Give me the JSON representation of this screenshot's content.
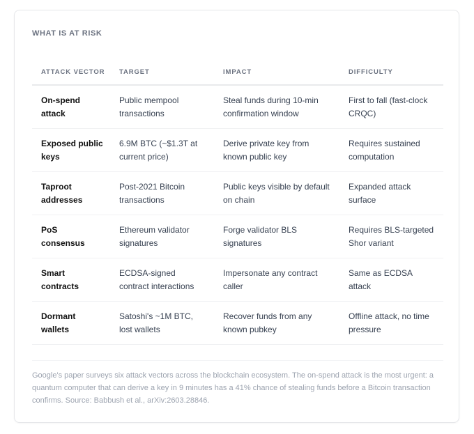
{
  "section_title": "WHAT IS AT RISK",
  "table": {
    "headers": [
      "ATTACK VECTOR",
      "TARGET",
      "IMPACT",
      "DIFFICULTY"
    ],
    "rows": [
      [
        "On-spend attack",
        "Public mempool transactions",
        "Steal funds during 10-min confirmation window",
        "First to fall (fast-clock CRQC)"
      ],
      [
        "Exposed public keys",
        "6.9M BTC (~$1.3T at current price)",
        "Derive private key from known public key",
        "Requires sustained computation"
      ],
      [
        "Taproot addresses",
        "Post-2021 Bitcoin transactions",
        "Public keys visible by default on chain",
        "Expanded attack surface"
      ],
      [
        "PoS consensus",
        "Ethereum validator signatures",
        "Forge validator BLS signatures",
        "Requires BLS-targeted Shor variant"
      ],
      [
        "Smart contracts",
        "ECDSA-signed contract interactions",
        "Impersonate any contract caller",
        "Same as ECDSA attack"
      ],
      [
        "Dormant wallets",
        "Satoshi's ~1M BTC, lost wallets",
        "Recover funds from any known pubkey",
        "Offline attack, no time pressure"
      ]
    ]
  },
  "footnote": "Google's paper surveys six attack vectors across the blockchain ecosystem. The on-spend attack is the most urgent: a quantum computer that can derive a key in 9 minutes has a 41% chance of stealing funds before a Bitcoin transaction confirms. Source: Babbush et al., arXiv:2603.28846."
}
